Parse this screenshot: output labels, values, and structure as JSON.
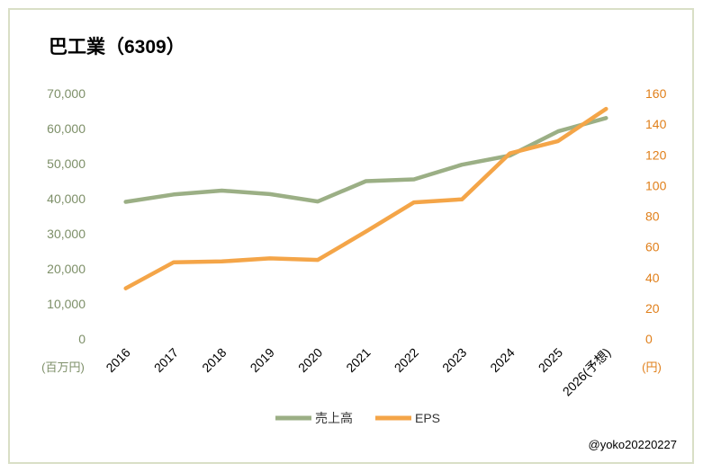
{
  "chart_data": {
    "type": "line",
    "title": "巴工業（6309）",
    "categories": [
      "2016",
      "2017",
      "2018",
      "2019",
      "2020",
      "2021",
      "2022",
      "2023",
      "2024",
      "2025",
      "2026(予想)"
    ],
    "series": [
      {
        "name": "売上高",
        "axis": "left",
        "color": "#9baf85",
        "values": [
          39100,
          41200,
          42300,
          41300,
          39200,
          45000,
          45500,
          49700,
          52300,
          59200,
          63000
        ]
      },
      {
        "name": "EPS",
        "axis": "right",
        "color": "#f4a548",
        "values": [
          33,
          50,
          50.5,
          52.5,
          51.5,
          70,
          89,
          91,
          121,
          129,
          150
        ]
      }
    ],
    "y_left": {
      "unit": "(百万円)",
      "ylim": [
        0,
        70000
      ],
      "ticks": [
        "0",
        "10,000",
        "20,000",
        "30,000",
        "40,000",
        "50,000",
        "60,000",
        "70,000"
      ],
      "tick_values": [
        0,
        10000,
        20000,
        30000,
        40000,
        50000,
        60000,
        70000
      ],
      "color": "#7d8f68"
    },
    "y_right": {
      "unit": "(円)",
      "ylim": [
        0,
        160
      ],
      "ticks": [
        "0",
        "20",
        "40",
        "60",
        "80",
        "100",
        "120",
        "140",
        "160"
      ],
      "tick_values": [
        0,
        20,
        40,
        60,
        80,
        100,
        120,
        140,
        160
      ],
      "color": "#e07f1a"
    },
    "legend": {
      "placement": "bottom",
      "entries": [
        "売上高",
        "EPS"
      ]
    },
    "grid": false
  },
  "credit": "@yoko20220227"
}
